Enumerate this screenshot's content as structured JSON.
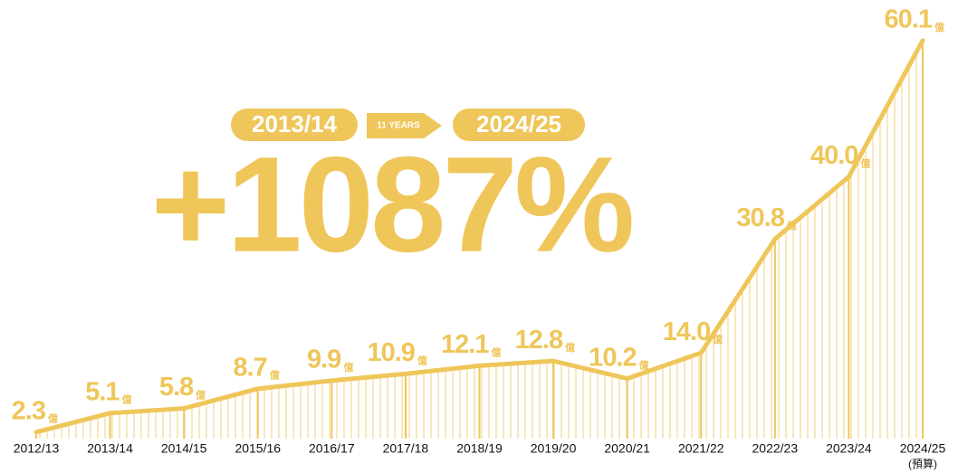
{
  "chart_data": {
    "type": "line",
    "categories": [
      "2012/13",
      "2013/14",
      "2014/15",
      "2015/16",
      "2016/17",
      "2017/18",
      "2018/19",
      "2019/20",
      "2020/21",
      "2021/22",
      "2022/23",
      "2023/24",
      "2024/25"
    ],
    "category_note": "(預算)",
    "values": [
      2.3,
      5.1,
      5.8,
      8.7,
      9.9,
      10.9,
      12.1,
      12.8,
      10.2,
      14.0,
      30.8,
      40.0,
      60.1
    ],
    "value_labels": [
      "2.3",
      "5.1",
      "5.8",
      "8.7",
      "9.9",
      "10.9",
      "12.1",
      "12.8",
      "10.2",
      "14.0",
      "30.8",
      "40.0",
      "60.1"
    ],
    "unit": "億",
    "color": "#efc65a",
    "annotation": {
      "from": "2013/14",
      "span": "11 YEARS",
      "to": "2024/25",
      "change": "+1087%"
    }
  }
}
